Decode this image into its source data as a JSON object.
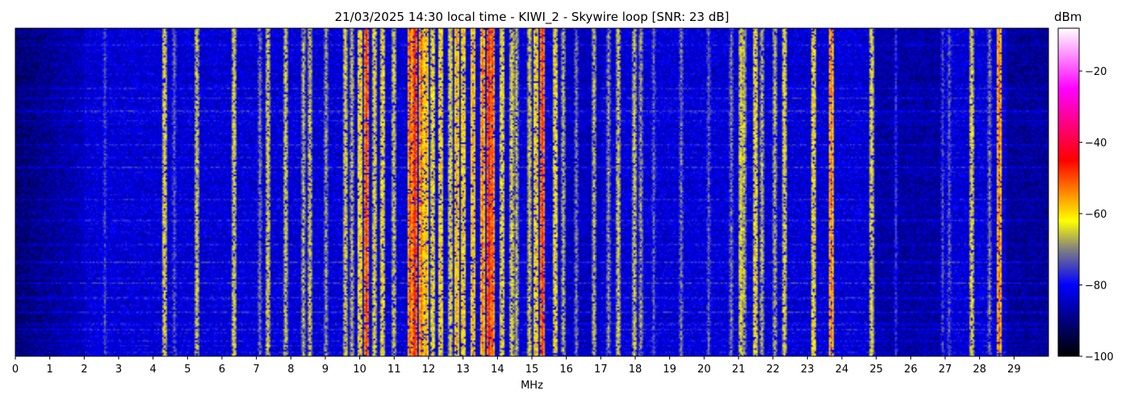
{
  "chart_data": {
    "type": "heatmap",
    "title": "21/03/2025 14:30 local time - KIWI_2 - Skywire loop [SNR: 23 dB]",
    "xlabel": "MHz",
    "ylabel": "",
    "xlim": [
      0,
      30
    ],
    "x_ticks": [
      "0",
      "1",
      "2",
      "3",
      "4",
      "5",
      "6",
      "7",
      "8",
      "9",
      "10",
      "11",
      "12",
      "13",
      "14",
      "15",
      "16",
      "17",
      "18",
      "19",
      "20",
      "21",
      "22",
      "23",
      "24",
      "25",
      "26",
      "27",
      "28",
      "29"
    ],
    "colorbar": {
      "label": "dBm",
      "range": [
        -100,
        -8
      ],
      "ticks": [
        -20,
        -40,
        -60,
        -80,
        -100
      ],
      "colormap_stops": [
        {
          "value": -100,
          "color": "#000000"
        },
        {
          "value": -80,
          "color": "#0000ff"
        },
        {
          "value": -70,
          "color": "#808080"
        },
        {
          "value": -62,
          "color": "#ffff00"
        },
        {
          "value": -45,
          "color": "#ff0000"
        },
        {
          "value": -25,
          "color": "#ff00ff"
        },
        {
          "value": -8,
          "color": "#ffffff"
        }
      ]
    },
    "signals": [
      {
        "mhz": 2.6,
        "dbm": -74
      },
      {
        "mhz": 4.3,
        "dbm": -62
      },
      {
        "mhz": 4.6,
        "dbm": -72
      },
      {
        "mhz": 5.25,
        "dbm": -64
      },
      {
        "mhz": 6.35,
        "dbm": -63
      },
      {
        "mhz": 7.1,
        "dbm": -70
      },
      {
        "mhz": 7.3,
        "dbm": -63
      },
      {
        "mhz": 7.85,
        "dbm": -64
      },
      {
        "mhz": 8.35,
        "dbm": -66
      },
      {
        "mhz": 8.55,
        "dbm": -64
      },
      {
        "mhz": 9.0,
        "dbm": -68
      },
      {
        "mhz": 9.55,
        "dbm": -63
      },
      {
        "mhz": 9.75,
        "dbm": -66
      },
      {
        "mhz": 10.0,
        "dbm": -58
      },
      {
        "mhz": 10.15,
        "dbm": -48
      },
      {
        "mhz": 10.4,
        "dbm": -62
      },
      {
        "mhz": 10.65,
        "dbm": -60
      },
      {
        "mhz": 10.95,
        "dbm": -64
      },
      {
        "mhz": 11.45,
        "dbm": -50
      },
      {
        "mhz": 11.6,
        "dbm": -46
      },
      {
        "mhz": 11.75,
        "dbm": -52
      },
      {
        "mhz": 11.9,
        "dbm": -56
      },
      {
        "mhz": 12.1,
        "dbm": -60
      },
      {
        "mhz": 12.35,
        "dbm": -58
      },
      {
        "mhz": 12.6,
        "dbm": -62
      },
      {
        "mhz": 12.8,
        "dbm": -56
      },
      {
        "mhz": 13.0,
        "dbm": -58
      },
      {
        "mhz": 13.25,
        "dbm": -56
      },
      {
        "mhz": 13.55,
        "dbm": -52
      },
      {
        "mhz": 13.72,
        "dbm": -46
      },
      {
        "mhz": 13.85,
        "dbm": -50
      },
      {
        "mhz": 14.1,
        "dbm": -60
      },
      {
        "mhz": 14.4,
        "dbm": -62
      },
      {
        "mhz": 14.55,
        "dbm": -66
      },
      {
        "mhz": 14.9,
        "dbm": -64
      },
      {
        "mhz": 15.1,
        "dbm": -58
      },
      {
        "mhz": 15.3,
        "dbm": -48
      },
      {
        "mhz": 15.65,
        "dbm": -60
      },
      {
        "mhz": 15.9,
        "dbm": -66
      },
      {
        "mhz": 16.25,
        "dbm": -70
      },
      {
        "mhz": 16.8,
        "dbm": -66
      },
      {
        "mhz": 17.2,
        "dbm": -68
      },
      {
        "mhz": 17.5,
        "dbm": -64
      },
      {
        "mhz": 17.95,
        "dbm": -64
      },
      {
        "mhz": 18.15,
        "dbm": -68
      },
      {
        "mhz": 18.5,
        "dbm": -72
      },
      {
        "mhz": 19.3,
        "dbm": -70
      },
      {
        "mhz": 20.1,
        "dbm": -72
      },
      {
        "mhz": 20.75,
        "dbm": -70
      },
      {
        "mhz": 21.05,
        "dbm": -62
      },
      {
        "mhz": 21.15,
        "dbm": -66
      },
      {
        "mhz": 21.45,
        "dbm": -60
      },
      {
        "mhz": 21.65,
        "dbm": -66
      },
      {
        "mhz": 22.05,
        "dbm": -66
      },
      {
        "mhz": 22.3,
        "dbm": -62
      },
      {
        "mhz": 23.15,
        "dbm": -60
      },
      {
        "mhz": 23.65,
        "dbm": -52
      },
      {
        "mhz": 24.85,
        "dbm": -62
      },
      {
        "mhz": 25.55,
        "dbm": -76
      },
      {
        "mhz": 26.9,
        "dbm": -74
      },
      {
        "mhz": 27.1,
        "dbm": -72
      },
      {
        "mhz": 27.75,
        "dbm": -62
      },
      {
        "mhz": 28.25,
        "dbm": -70
      },
      {
        "mhz": 28.55,
        "dbm": -52
      }
    ]
  }
}
